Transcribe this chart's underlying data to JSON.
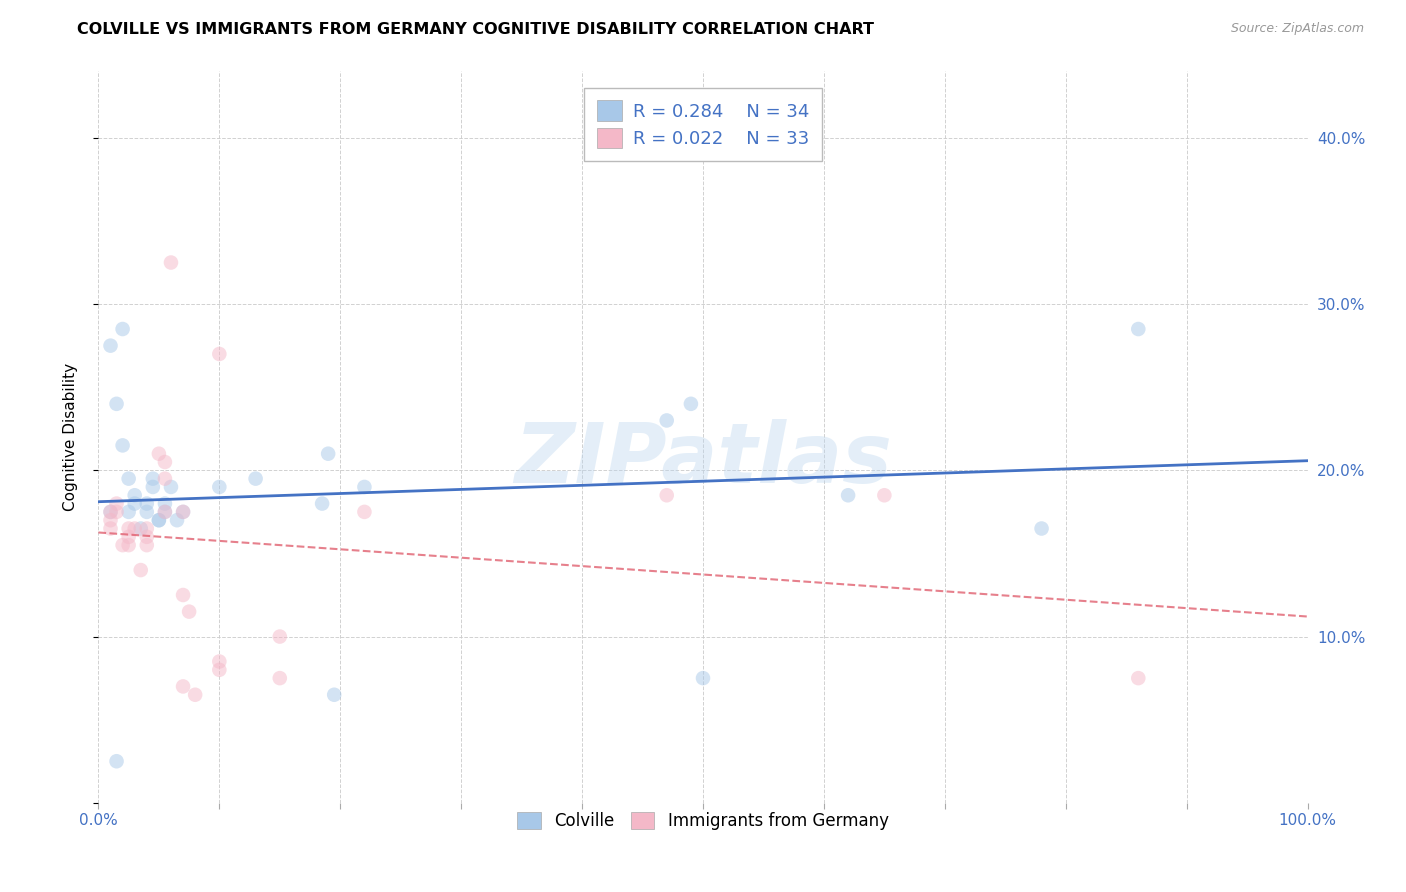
{
  "title": "COLVILLE VS IMMIGRANTS FROM GERMANY COGNITIVE DISABILITY CORRELATION CHART",
  "source": "Source: ZipAtlas.com",
  "ylabel_label": "Cognitive Disability",
  "watermark": "ZIPatlas",
  "colville_R": 0.284,
  "colville_N": 34,
  "germany_R": 0.022,
  "germany_N": 33,
  "xlim": [
    0.0,
    1.0
  ],
  "ylim": [
    0.0,
    0.44
  ],
  "yticks": [
    0.0,
    0.1,
    0.2,
    0.3,
    0.4
  ],
  "xticks": [
    0.0,
    0.1,
    0.2,
    0.3,
    0.4,
    0.5,
    0.6,
    0.7,
    0.8,
    0.9,
    1.0
  ],
  "colville_color": "#a8c8e8",
  "germany_color": "#f4b8c8",
  "colville_line_color": "#4472c4",
  "germany_line_color": "#e06070",
  "legend_text_color": "#4472c4",
  "tick_label_color": "#4472c4",
  "colville_x": [
    0.015,
    0.01,
    0.02,
    0.015,
    0.02,
    0.025,
    0.01,
    0.03,
    0.025,
    0.03,
    0.035,
    0.04,
    0.04,
    0.045,
    0.045,
    0.05,
    0.05,
    0.055,
    0.055,
    0.06,
    0.065,
    0.07,
    0.1,
    0.13,
    0.185,
    0.19,
    0.195,
    0.22,
    0.47,
    0.49,
    0.5,
    0.62,
    0.78,
    0.86
  ],
  "colville_y": [
    0.025,
    0.275,
    0.285,
    0.24,
    0.215,
    0.195,
    0.175,
    0.185,
    0.175,
    0.18,
    0.165,
    0.175,
    0.18,
    0.19,
    0.195,
    0.17,
    0.17,
    0.175,
    0.18,
    0.19,
    0.17,
    0.175,
    0.19,
    0.195,
    0.18,
    0.21,
    0.065,
    0.19,
    0.23,
    0.24,
    0.075,
    0.185,
    0.165,
    0.285
  ],
  "germany_x": [
    0.01,
    0.01,
    0.01,
    0.015,
    0.015,
    0.02,
    0.025,
    0.025,
    0.025,
    0.03,
    0.035,
    0.04,
    0.04,
    0.04,
    0.05,
    0.055,
    0.055,
    0.055,
    0.06,
    0.07,
    0.07,
    0.07,
    0.075,
    0.08,
    0.1,
    0.1,
    0.1,
    0.15,
    0.15,
    0.22,
    0.47,
    0.65,
    0.86
  ],
  "germany_y": [
    0.175,
    0.165,
    0.17,
    0.18,
    0.175,
    0.155,
    0.165,
    0.155,
    0.16,
    0.165,
    0.14,
    0.165,
    0.155,
    0.16,
    0.21,
    0.205,
    0.195,
    0.175,
    0.325,
    0.175,
    0.125,
    0.07,
    0.115,
    0.065,
    0.27,
    0.08,
    0.085,
    0.075,
    0.1,
    0.175,
    0.185,
    0.185,
    0.075
  ],
  "background_color": "#ffffff",
  "grid_color": "#cccccc",
  "title_fontsize": 11.5,
  "axis_label_fontsize": 11,
  "tick_fontsize": 11,
  "marker_size": 110,
  "marker_alpha": 0.5
}
